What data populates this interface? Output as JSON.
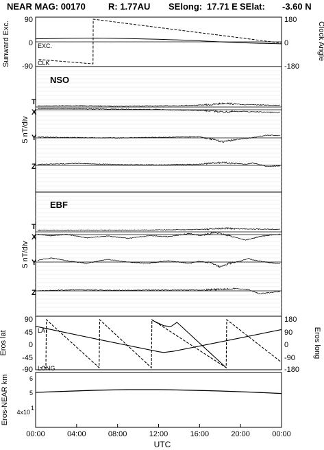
{
  "header": {
    "instrument": "NEAR MAG: 00170",
    "range": "R: 1.77AU",
    "selong_label": "SElong:",
    "selong_value": "17.71 E",
    "selat_label": "SElat:",
    "selat_value": "-3.60 N"
  },
  "x_axis": {
    "label": "UTC",
    "ticks": [
      "00:00",
      "04:00",
      "08:00",
      "12:00",
      "16:00",
      "20:00",
      "00:00"
    ]
  },
  "chart_data": [
    {
      "type": "line",
      "panel": "sunward-clock",
      "ylabel_left": "Sunward Exc.",
      "ylabel_right": "Clock Angle",
      "yticks_left": [
        "90",
        "0",
        "-90"
      ],
      "yticks_right": [
        "180",
        "0",
        "-180"
      ],
      "ylim": [
        -90,
        90
      ],
      "ylim_right": [
        -180,
        180
      ],
      "series": [
        {
          "name": "EXC.",
          "style": "solid",
          "x": [
            0,
            3,
            6,
            9,
            12,
            15,
            18,
            21,
            24
          ],
          "y": [
            12,
            14,
            15,
            13,
            10,
            6,
            0,
            -5,
            -8
          ]
        },
        {
          "name": "CLK",
          "style": "dashed",
          "axis": "right",
          "x": [
            0.3,
            5.6,
            5.62,
            24
          ],
          "y": [
            -140,
            -175,
            180,
            -10
          ]
        }
      ]
    },
    {
      "type": "line",
      "panel": "NSO",
      "title": "NSO",
      "ylabel": "5 nT/div",
      "traces": [
        "T",
        "X",
        "Y",
        "Z"
      ],
      "series": [
        {
          "name": "T",
          "x": [
            0,
            4,
            8,
            12,
            15,
            17,
            18.5,
            20,
            24
          ],
          "y": [
            0.4,
            0.5,
            0.3,
            0.4,
            0.6,
            0.8,
            1.4,
            0.9,
            0.6
          ]
        },
        {
          "name": "X",
          "x": [
            0,
            4,
            8,
            12,
            15,
            17,
            18.5,
            20,
            24
          ],
          "y": [
            0.4,
            0.4,
            0.2,
            0.1,
            -0.2,
            -0.4,
            -0.8,
            -0.6,
            -1.0
          ]
        },
        {
          "name": "Y",
          "x": [
            0,
            4,
            8,
            12,
            16,
            17.6,
            18.2,
            19.6,
            20.6,
            22.6,
            24
          ],
          "y": [
            0.3,
            0.1,
            0.0,
            0.2,
            0.4,
            -0.8,
            -1.4,
            -0.6,
            -0.2,
            1.0,
            0.8
          ]
        },
        {
          "name": "Z",
          "x": [
            0,
            4,
            8,
            12,
            16,
            17.5,
            18.2,
            20.6,
            21.2,
            22.6,
            24
          ],
          "y": [
            0.3,
            0.7,
            0.3,
            0.2,
            0.4,
            0.9,
            1.0,
            0.4,
            0.9,
            -0.4,
            -0.2
          ]
        }
      ]
    },
    {
      "type": "line",
      "panel": "EBF",
      "title": "EBF",
      "ylabel": "5 nT/div",
      "traces": [
        "T",
        "X",
        "Y",
        "Z"
      ],
      "series": [
        {
          "name": "T",
          "x": [
            0,
            4,
            8,
            12,
            15,
            17,
            18.5,
            20,
            24
          ],
          "y": [
            0.6,
            0.6,
            0.6,
            0.7,
            0.8,
            1.0,
            1.3,
            1.1,
            0.9
          ]
        },
        {
          "name": "X",
          "x": [
            0,
            1.5,
            3,
            5,
            7,
            9,
            11,
            13,
            15,
            16,
            17.5,
            19,
            20.5,
            22,
            24
          ],
          "y": [
            0.2,
            -0.4,
            0.1,
            -1.2,
            -0.5,
            -1.4,
            -0.4,
            -0.7,
            0.4,
            -0.4,
            0.8,
            -0.5,
            -2.0,
            -0.6,
            0.2
          ]
        },
        {
          "name": "Y",
          "x": [
            0,
            1.5,
            3,
            5,
            7,
            9,
            11,
            13,
            15,
            16,
            17.2,
            18,
            18.8,
            20,
            20.7,
            21.6,
            24
          ],
          "y": [
            0.5,
            1.5,
            0.5,
            -0.5,
            1.0,
            0.0,
            -0.5,
            0.5,
            -0.5,
            0.3,
            -0.4,
            -1.8,
            -0.6,
            0.3,
            1.3,
            0.5,
            -0.8
          ]
        },
        {
          "name": "Z",
          "x": [
            0,
            4,
            8,
            12,
            16,
            18.4,
            19.8,
            20.8,
            21.8,
            23,
            24
          ],
          "y": [
            0.0,
            0.4,
            0.2,
            0.3,
            0.3,
            0.6,
            0.8,
            0.4,
            -1.0,
            -0.6,
            -0.2
          ]
        }
      ]
    },
    {
      "type": "line",
      "panel": "eros-position",
      "ylabel_left": "Eros lat",
      "ylabel_right": "Eros long",
      "yticks_left": [
        "90",
        "45",
        "0",
        "-45",
        "-90"
      ],
      "yticks_right": [
        "180",
        "90",
        "0",
        "-90",
        "-180"
      ],
      "ylim": [
        -90,
        90
      ],
      "ylim_right": [
        -180,
        180
      ],
      "series": [
        {
          "name": "LAT",
          "style": "solid",
          "x": [
            0,
            6,
            12,
            12.5,
            13.5,
            19,
            24
          ],
          "y": [
            65,
            17,
            -30,
            -33,
            -28,
            14,
            53
          ]
        },
        {
          "name": "LONG",
          "style": "dashed",
          "axis": "right",
          "x": [
            0.4,
            1.0,
            1.05,
            6.2,
            6.25,
            11.3,
            11.35,
            18.6,
            18.65,
            24
          ],
          "y": [
            -180,
            -180,
            180,
            -180,
            180,
            -180,
            180,
            -180,
            180,
            -140
          ]
        },
        {
          "name": "LONG",
          "style": "solid",
          "axis": "right",
          "x": [
            11.4,
            12.5,
            13.2,
            13.8,
            18.6
          ],
          "y": [
            175,
            135,
            128,
            160,
            -180
          ]
        }
      ]
    },
    {
      "type": "line",
      "panel": "eros-near-distance",
      "ylabel": "Eros-NEAR km",
      "yticks": [
        "6",
        "5",
        "4x10"
      ],
      "ytick_exponent": "1",
      "series": [
        {
          "name": "distance",
          "x": [
            0,
            3,
            6,
            9,
            12,
            15,
            18,
            21,
            24
          ],
          "y": [
            50,
            50.4,
            50.8,
            51.0,
            51.0,
            50.8,
            50.5,
            50.1,
            49.6
          ]
        }
      ]
    }
  ]
}
